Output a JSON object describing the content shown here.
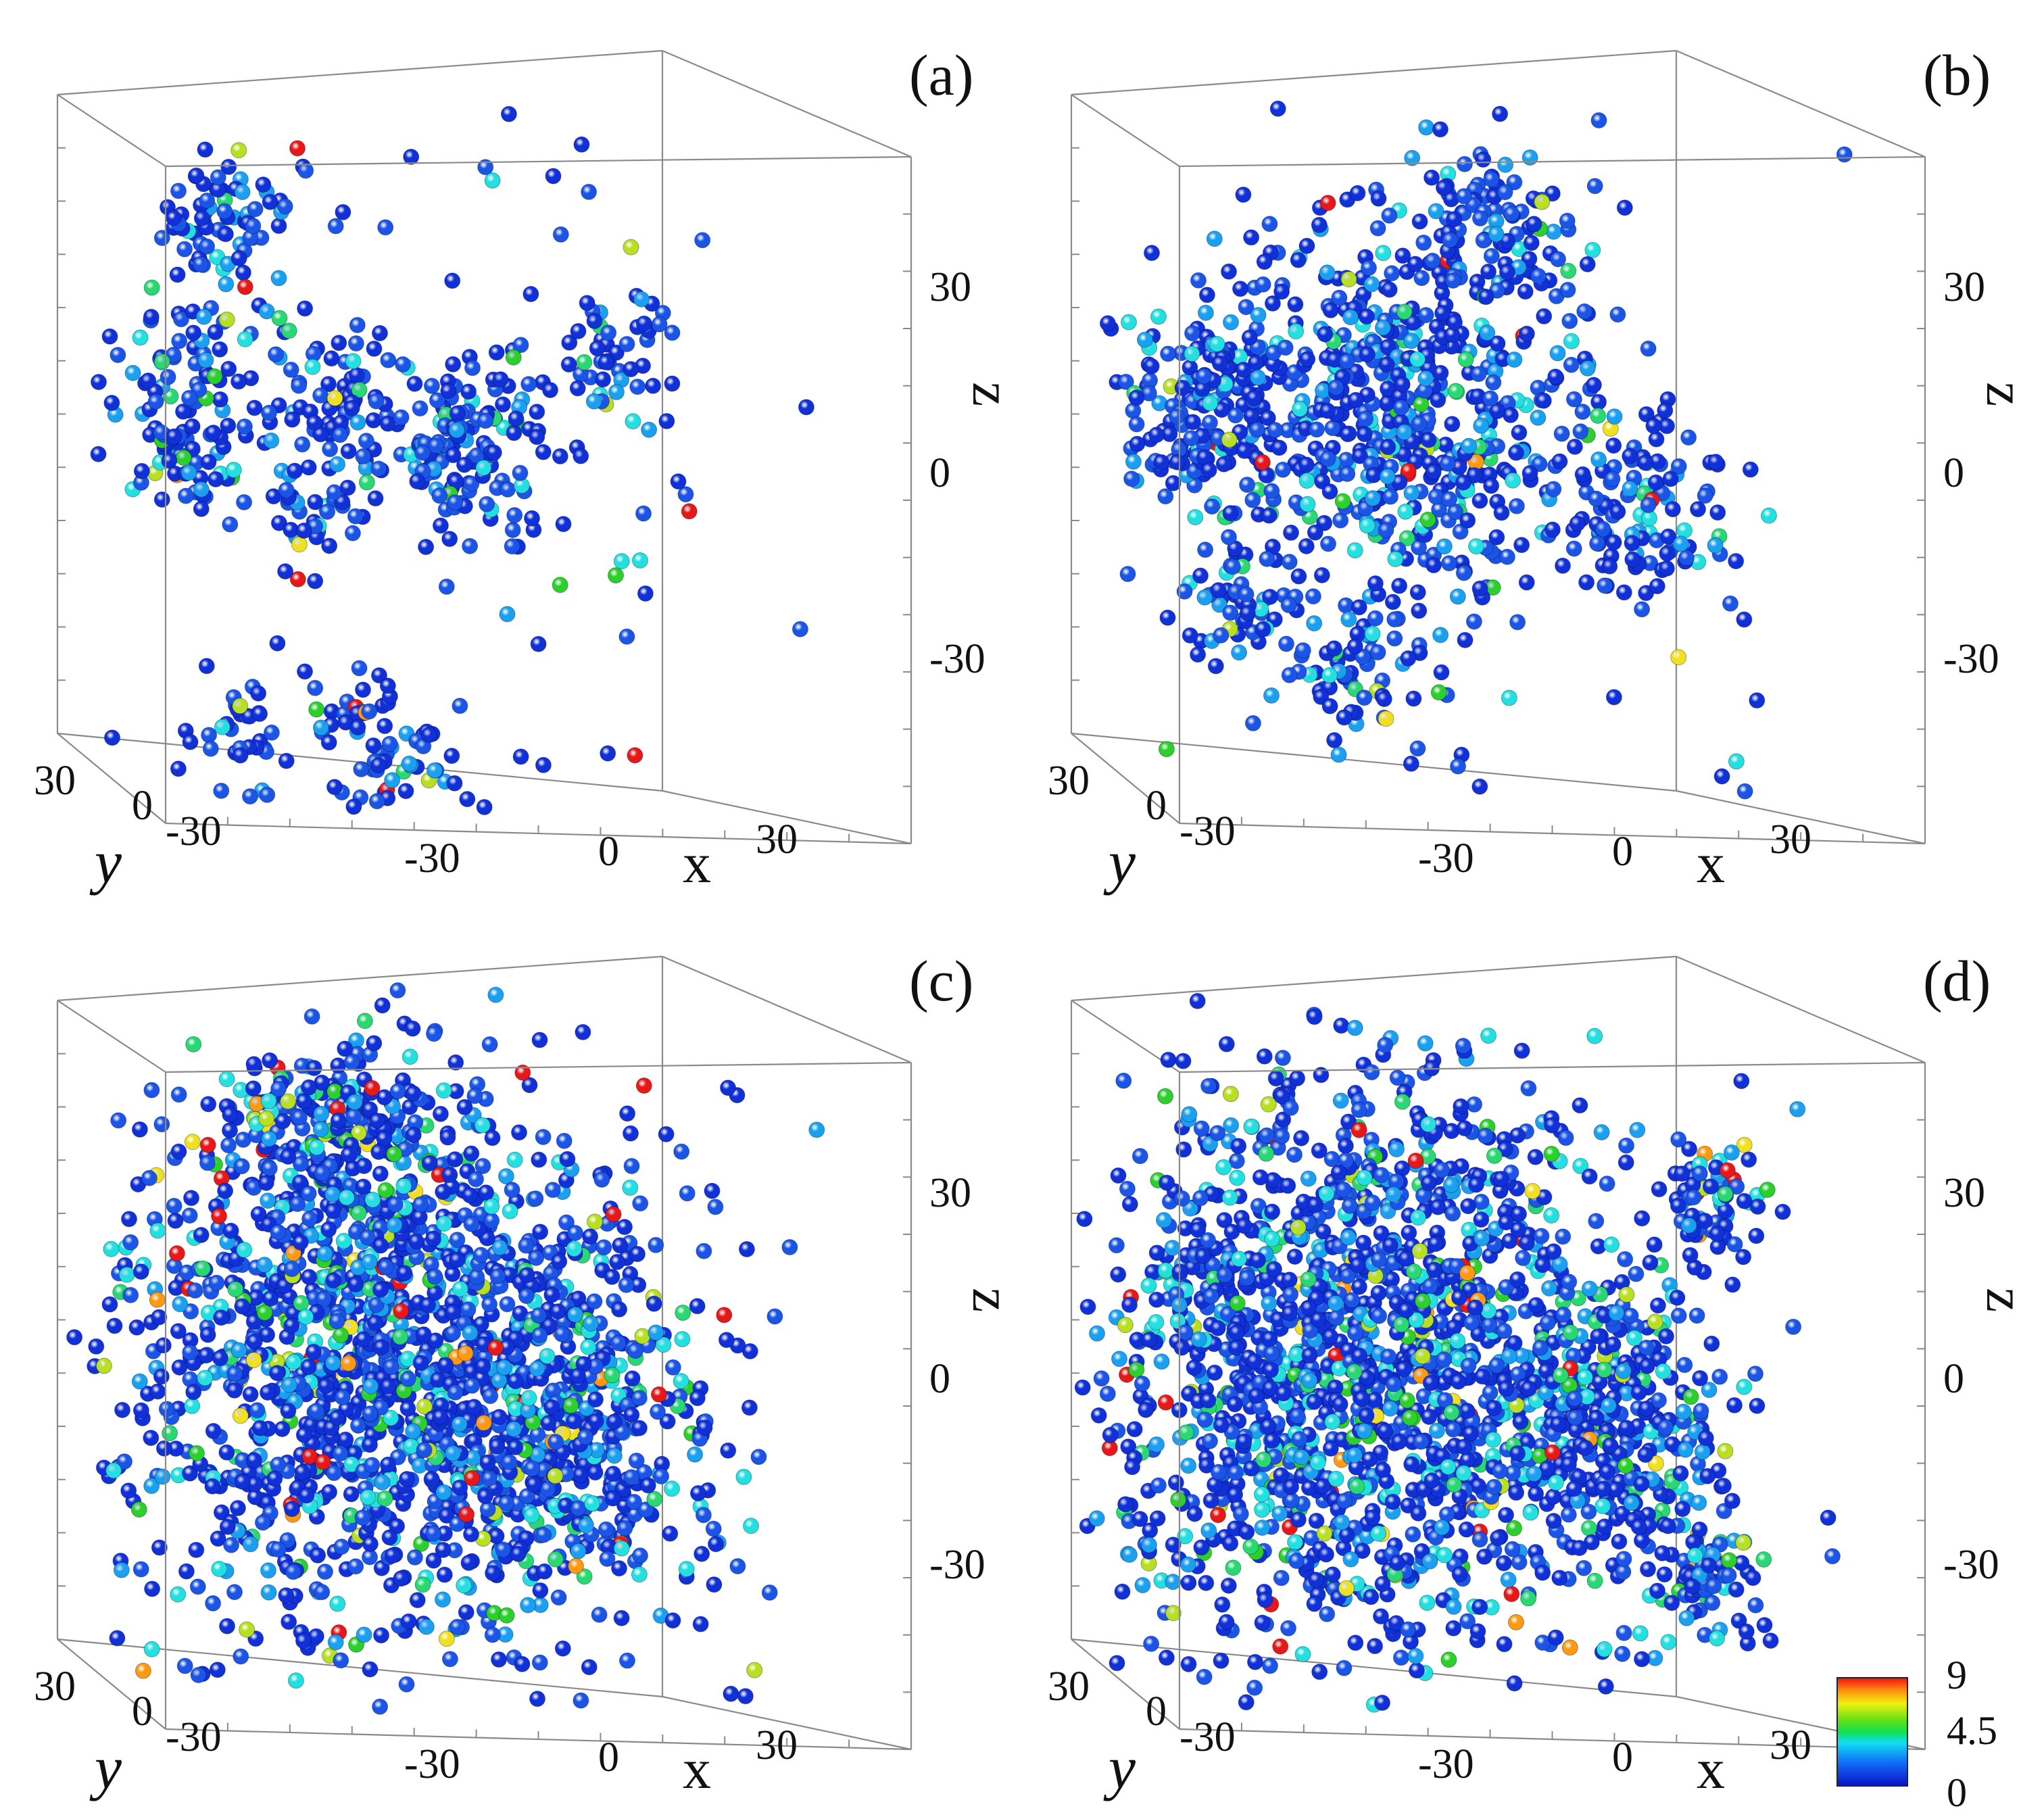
{
  "colors": {
    "background": "#ffffff",
    "box": "#8a8a8a",
    "colormap": [
      "#1030d8",
      "#1a55e8",
      "#1aa0f0",
      "#22e0e0",
      "#28d870",
      "#2bd02b",
      "#b8e020",
      "#f0e020",
      "#ff9a10",
      "#e81818"
    ]
  },
  "colorbar": {
    "ticks": [
      "9",
      "4.5",
      "0"
    ],
    "min": 0,
    "max": 9
  },
  "chart_data": [
    {
      "type": "scatter",
      "panel_label": "(a)",
      "xlabel": "x",
      "ylabel": "y",
      "zlabel": "z",
      "x_ticks": [
        "-30",
        "0",
        "30"
      ],
      "y_ticks": [
        "30",
        "0",
        "-30"
      ],
      "z_ticks": [
        "30",
        "0",
        "-30"
      ],
      "xlim": [
        -60,
        60
      ],
      "ylim": [
        -60,
        60
      ],
      "zlim": [
        -60,
        60
      ],
      "grid": false,
      "clusters": [
        {
          "x": -38,
          "y": 0,
          "z": 42,
          "r": 12,
          "n": 70
        },
        {
          "x": -48,
          "y": 5,
          "z": 15,
          "r": 12,
          "n": 60
        },
        {
          "x": -44,
          "y": 10,
          "z": -2,
          "r": 10,
          "n": 50
        },
        {
          "x": -18,
          "y": 0,
          "z": 10,
          "r": 12,
          "n": 80
        },
        {
          "x": 2,
          "y": -5,
          "z": 2,
          "r": 13,
          "n": 130
        },
        {
          "x": -25,
          "y": 0,
          "z": -10,
          "r": 8,
          "n": 35
        },
        {
          "x": 30,
          "y": 0,
          "z": 18,
          "r": 9,
          "n": 45
        },
        {
          "x": -12,
          "y": -5,
          "z": -52,
          "r": 11,
          "n": 70
        },
        {
          "x": -38,
          "y": 0,
          "z": -52,
          "r": 8,
          "n": 30
        }
      ],
      "sparse": 85
    },
    {
      "type": "scatter",
      "panel_label": "(b)",
      "xlabel": "x",
      "ylabel": "y",
      "zlabel": "z",
      "x_ticks": [
        "-30",
        "0",
        "30"
      ],
      "y_ticks": [
        "30",
        "0",
        "-30"
      ],
      "z_ticks": [
        "30",
        "0",
        "-30"
      ],
      "xlim": [
        -60,
        60
      ],
      "ylim": [
        -60,
        60
      ],
      "zlim": [
        -60,
        60
      ],
      "grid": false,
      "clusters": [
        {
          "x": -12,
          "y": 0,
          "z": 8,
          "r": 28,
          "n": 600
        },
        {
          "x": -45,
          "y": 5,
          "z": 5,
          "r": 14,
          "n": 130
        },
        {
          "x": 5,
          "y": 0,
          "z": 40,
          "r": 12,
          "n": 90
        },
        {
          "x": 32,
          "y": 0,
          "z": -8,
          "r": 13,
          "n": 110
        },
        {
          "x": -18,
          "y": 0,
          "z": -38,
          "r": 10,
          "n": 60
        },
        {
          "x": -40,
          "y": 0,
          "z": -28,
          "r": 9,
          "n": 45
        }
      ],
      "sparse": 55
    },
    {
      "type": "scatter",
      "panel_label": "(c)",
      "xlabel": "x",
      "ylabel": "y",
      "zlabel": "z",
      "x_ticks": [
        "-30",
        "0",
        "30"
      ],
      "y_ticks": [
        "30",
        "0",
        "-30"
      ],
      "z_ticks": [
        "30",
        "0",
        "-30"
      ],
      "xlim": [
        -60,
        60
      ],
      "ylim": [
        -60,
        60
      ],
      "zlim": [
        -60,
        60
      ],
      "grid": false,
      "clusters": [
        {
          "x": -10,
          "y": 0,
          "z": 0,
          "r": 40,
          "n": 1500
        },
        {
          "x": -20,
          "y": 0,
          "z": 42,
          "r": 16,
          "n": 200
        },
        {
          "x": 20,
          "y": 0,
          "z": -15,
          "r": 22,
          "n": 260
        }
      ],
      "sparse": 70
    },
    {
      "type": "scatter",
      "panel_label": "(d)",
      "xlabel": "x",
      "ylabel": "y",
      "zlabel": "z",
      "x_ticks": [
        "-30",
        "0",
        "30"
      ],
      "y_ticks": [
        "30",
        "0",
        "-30"
      ],
      "z_ticks": [
        "30",
        "0",
        "-30"
      ],
      "xlim": [
        -60,
        60
      ],
      "ylim": [
        -60,
        60
      ],
      "zlim": [
        -60,
        60
      ],
      "grid": false,
      "clusters": [
        {
          "x": -18,
          "y": 0,
          "z": 0,
          "r": 42,
          "n": 1700
        },
        {
          "x": 28,
          "y": 0,
          "z": -10,
          "r": 16,
          "n": 220
        },
        {
          "x": 45,
          "y": 0,
          "z": 28,
          "r": 8,
          "n": 60
        },
        {
          "x": 42,
          "y": 0,
          "z": -35,
          "r": 9,
          "n": 70
        }
      ],
      "sparse": 45
    }
  ]
}
